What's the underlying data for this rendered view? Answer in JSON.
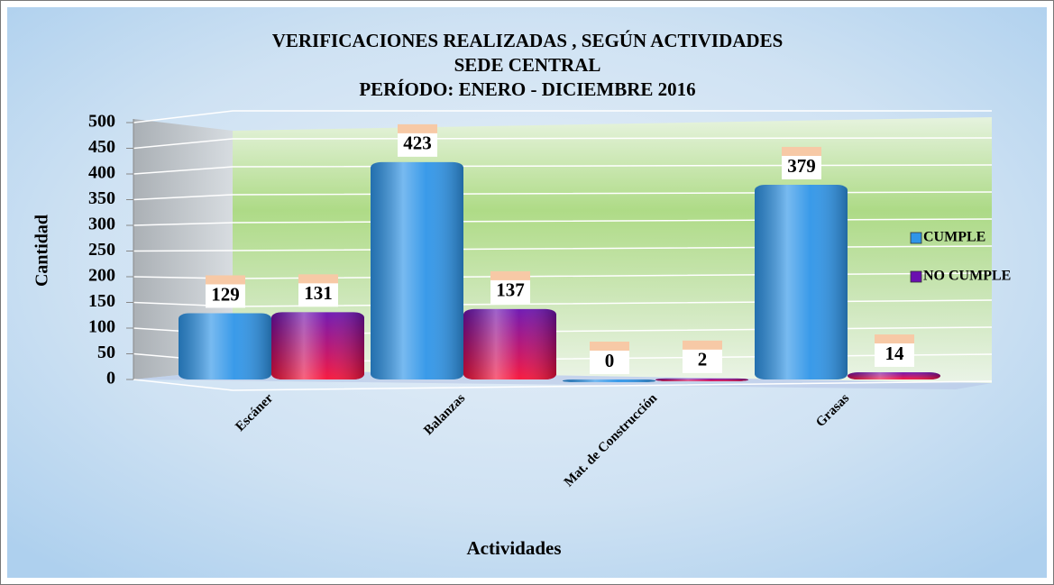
{
  "chart_data": {
    "type": "bar",
    "title": [
      "VERIFICACIONES REALIZADAS , SEGÚN ACTIVIDADES",
      "SEDE CENTRAL",
      "PERÍODO: ENERO - DICIEMBRE 2016"
    ],
    "y_label": "Cantidad",
    "x_label": "Actividades",
    "categories": [
      "Escáner",
      "Balanzas",
      "Mat. de Construcción",
      "Grasas"
    ],
    "series": [
      {
        "name": "CUMPLE",
        "color": "#2f95e8",
        "values": [
          129,
          423,
          0,
          379
        ]
      },
      {
        "name": "NO CUMPLE",
        "color": "#6a10b0",
        "values": [
          131,
          137,
          2,
          14
        ]
      }
    ],
    "ylim": [
      0,
      500
    ],
    "yticks": [
      0,
      50,
      100,
      150,
      200,
      250,
      300,
      350,
      400,
      450,
      500
    ],
    "grid": true,
    "legend": "right"
  }
}
